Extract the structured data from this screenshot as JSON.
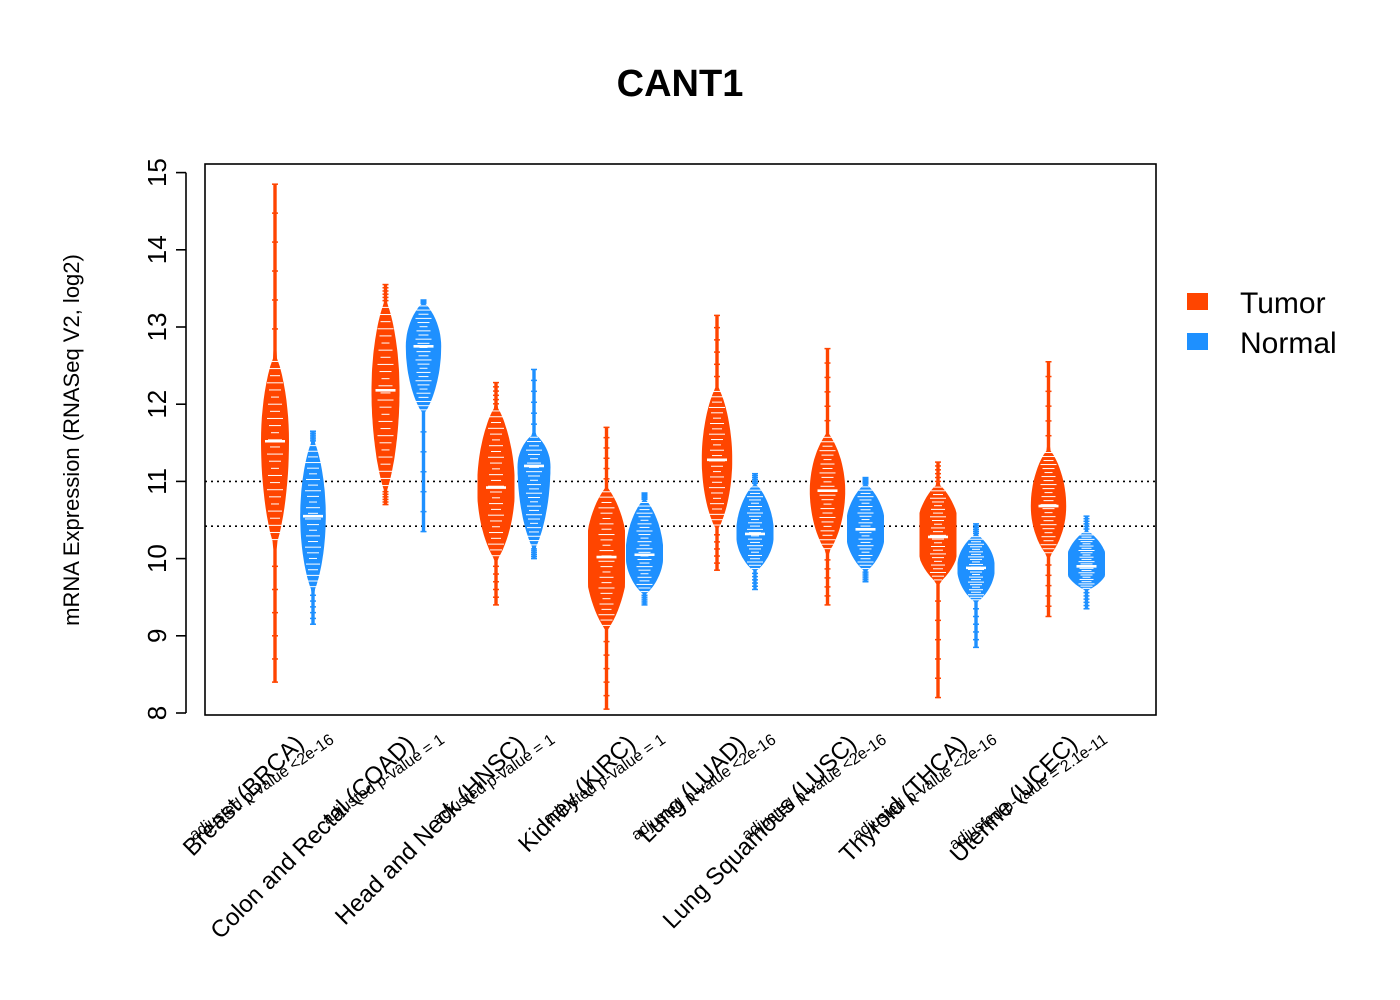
{
  "chart_data": {
    "type": "violin",
    "title": "CANT1",
    "ylabel": "mRNA Expression (RNASeq V2, log2)",
    "xlabel": "",
    "ylim": [
      8,
      15
    ],
    "yticks": [
      8,
      9,
      10,
      11,
      12,
      13,
      14,
      15
    ],
    "reference_lines": [
      11.0,
      10.42
    ],
    "legend": {
      "position": "right",
      "entries": [
        {
          "name": "Tumor",
          "color": "#FF4500"
        },
        {
          "name": "Normal",
          "color": "#1E90FF"
        }
      ]
    },
    "categories": [
      {
        "label": "Breast (BRCA)",
        "pvalue": "adjusted p-value <2e-16",
        "tumor": {
          "min": 8.4,
          "max": 14.85,
          "median": 11.52,
          "body_low": 10.2,
          "body_high": 12.6,
          "width": 1.0
        },
        "normal": {
          "min": 9.15,
          "max": 11.65,
          "median": 10.55,
          "body_low": 9.6,
          "body_high": 11.5,
          "width": 0.9
        }
      },
      {
        "label": "Colon and Rectal (COAD)",
        "pvalue": "adjusted p-value = 1",
        "tumor": {
          "min": 10.7,
          "max": 13.55,
          "median": 12.18,
          "body_low": 10.9,
          "body_high": 13.3,
          "width": 1.0
        },
        "normal": {
          "min": 10.35,
          "max": 13.35,
          "median": 12.75,
          "body_low": 11.9,
          "body_high": 13.3,
          "width": 1.3
        }
      },
      {
        "label": "Head and Neck (HNSC)",
        "pvalue": "adjusted p-value = 1",
        "tumor": {
          "min": 9.4,
          "max": 12.28,
          "median": 10.92,
          "body_low": 10.0,
          "body_high": 11.95,
          "width": 1.4
        },
        "normal": {
          "min": 10.0,
          "max": 12.45,
          "median": 11.2,
          "body_low": 10.15,
          "body_high": 11.6,
          "width": 1.2
        }
      },
      {
        "label": "Kidney (KIRC)",
        "pvalue": "adjusted p-value = 1",
        "tumor": {
          "min": 8.05,
          "max": 11.7,
          "median": 10.02,
          "body_low": 9.1,
          "body_high": 10.9,
          "width": 1.6
        },
        "normal": {
          "min": 9.4,
          "max": 10.85,
          "median": 10.05,
          "body_low": 9.55,
          "body_high": 10.75,
          "width": 1.4
        }
      },
      {
        "label": "Lung (LUAD)",
        "pvalue": "adjusted p-value <2e-16",
        "tumor": {
          "min": 9.85,
          "max": 13.15,
          "median": 11.28,
          "body_low": 10.4,
          "body_high": 12.2,
          "width": 1.1
        },
        "normal": {
          "min": 9.6,
          "max": 11.1,
          "median": 10.32,
          "body_low": 9.85,
          "body_high": 10.95,
          "width": 1.4
        }
      },
      {
        "label": "Lung Squamous (LUSC)",
        "pvalue": "adjusted p-value <2e-16",
        "tumor": {
          "min": 9.4,
          "max": 12.72,
          "median": 10.88,
          "body_low": 10.1,
          "body_high": 11.6,
          "width": 1.3
        },
        "normal": {
          "min": 9.7,
          "max": 11.05,
          "median": 10.38,
          "body_low": 9.85,
          "body_high": 10.95,
          "width": 1.5
        }
      },
      {
        "label": "Thyroid (THCA)",
        "pvalue": "adjusted p-value <2e-16",
        "tumor": {
          "min": 8.2,
          "max": 11.25,
          "median": 10.28,
          "body_low": 9.7,
          "body_high": 10.95,
          "width": 1.7
        },
        "normal": {
          "min": 8.85,
          "max": 10.45,
          "median": 9.88,
          "body_low": 9.45,
          "body_high": 10.3,
          "width": 1.4
        }
      },
      {
        "label": "Uterine (UCEC)",
        "pvalue": "adjusted p-value = 2.1e-11",
        "tumor": {
          "min": 9.25,
          "max": 12.55,
          "median": 10.68,
          "body_low": 10.05,
          "body_high": 11.4,
          "width": 1.3
        },
        "normal": {
          "min": 9.35,
          "max": 10.55,
          "median": 9.9,
          "body_low": 9.6,
          "body_high": 10.35,
          "width": 1.6
        }
      }
    ]
  }
}
